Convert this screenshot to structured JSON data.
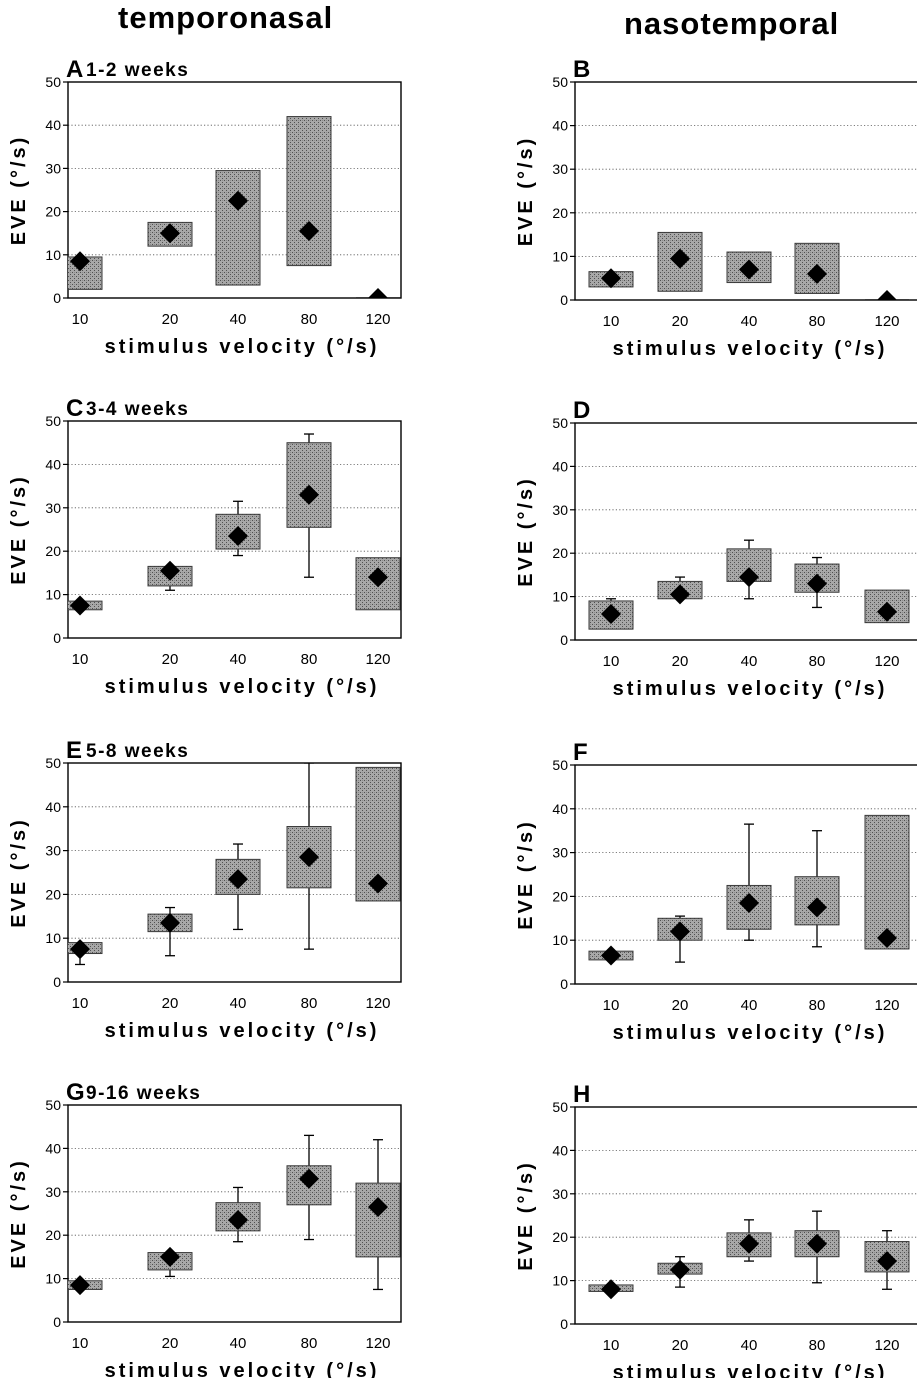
{
  "columns": {
    "left_title": "temporonasal",
    "right_title": "nasotemporal"
  },
  "chart_data": [
    {
      "type": "box",
      "panel": "A",
      "title": "1-2 weeks",
      "xlabel": "stimulus velocity (°/s)",
      "ylabel": "EVE (°/s)",
      "categories": [
        "10",
        "20",
        "40",
        "80",
        "120"
      ],
      "ylim": [
        0,
        50
      ],
      "yticks": [
        0,
        10,
        20,
        30,
        40,
        50
      ],
      "grid": "horizontal dotted",
      "boxes": [
        {
          "low": 2,
          "high": 9.5,
          "median": 8.5,
          "whisker_low": null,
          "whisker_high": null
        },
        {
          "low": 12,
          "high": 17.5,
          "median": 15,
          "whisker_low": null,
          "whisker_high": null
        },
        {
          "low": 3,
          "high": 29.5,
          "median": 22.5,
          "whisker_low": null,
          "whisker_high": null
        },
        {
          "low": 7.5,
          "high": 42,
          "median": 15.5,
          "whisker_low": null,
          "whisker_high": null
        },
        {
          "low": 0,
          "high": 0,
          "median": 0,
          "whisker_low": null,
          "whisker_high": null
        }
      ]
    },
    {
      "type": "box",
      "panel": "B",
      "title": "",
      "xlabel": "stimulus velocity (°/s)",
      "ylabel": "EVE (°/s)",
      "categories": [
        "10",
        "20",
        "40",
        "80",
        "120"
      ],
      "ylim": [
        0,
        50
      ],
      "yticks": [
        0,
        10,
        20,
        30,
        40,
        50
      ],
      "grid": "horizontal dotted",
      "boxes": [
        {
          "low": 3,
          "high": 6.5,
          "median": 5,
          "whisker_low": null,
          "whisker_high": null
        },
        {
          "low": 2,
          "high": 15.5,
          "median": 9.5,
          "whisker_low": null,
          "whisker_high": null
        },
        {
          "low": 4,
          "high": 11,
          "median": 7,
          "whisker_low": null,
          "whisker_high": null
        },
        {
          "low": 1.5,
          "high": 13,
          "median": 6,
          "whisker_low": null,
          "whisker_high": null
        },
        {
          "low": 0,
          "high": 0,
          "median": 0,
          "whisker_low": null,
          "whisker_high": null
        }
      ]
    },
    {
      "type": "box",
      "panel": "C",
      "title": "3-4 weeks",
      "xlabel": "stimulus velocity (°/s)",
      "ylabel": "EVE (°/s)",
      "categories": [
        "10",
        "20",
        "40",
        "80",
        "120"
      ],
      "ylim": [
        0,
        50
      ],
      "yticks": [
        0,
        10,
        20,
        30,
        40,
        50
      ],
      "grid": "horizontal dotted",
      "boxes": [
        {
          "low": 6.5,
          "high": 8.5,
          "median": 7.5,
          "whisker_low": null,
          "whisker_high": null
        },
        {
          "low": 12,
          "high": 16.5,
          "median": 15.5,
          "whisker_low": 11,
          "whisker_high": null
        },
        {
          "low": 20.5,
          "high": 28.5,
          "median": 23.5,
          "whisker_low": 19,
          "whisker_high": 31.5
        },
        {
          "low": 25.5,
          "high": 45,
          "median": 33,
          "whisker_low": 14,
          "whisker_high": 47
        },
        {
          "low": 6.5,
          "high": 18.5,
          "median": 14,
          "whisker_low": null,
          "whisker_high": null
        }
      ]
    },
    {
      "type": "box",
      "panel": "D",
      "title": "",
      "xlabel": "stimulus velocity (°/s)",
      "ylabel": "EVE (°/s)",
      "categories": [
        "10",
        "20",
        "40",
        "80",
        "120"
      ],
      "ylim": [
        0,
        50
      ],
      "yticks": [
        0,
        10,
        20,
        30,
        40,
        50
      ],
      "grid": "horizontal dotted",
      "boxes": [
        {
          "low": 2.5,
          "high": 9,
          "median": 6,
          "whisker_low": null,
          "whisker_high": 9.5
        },
        {
          "low": 9.5,
          "high": 13.5,
          "median": 10.5,
          "whisker_low": null,
          "whisker_high": 14.5
        },
        {
          "low": 13.5,
          "high": 21,
          "median": 14.5,
          "whisker_low": 9.5,
          "whisker_high": 23
        },
        {
          "low": 11,
          "high": 17.5,
          "median": 13,
          "whisker_low": 7.5,
          "whisker_high": 19
        },
        {
          "low": 4,
          "high": 11.5,
          "median": 6.5,
          "whisker_low": null,
          "whisker_high": null
        }
      ]
    },
    {
      "type": "box",
      "panel": "E",
      "title": "5-8 weeks",
      "xlabel": "stimulus velocity (°/s)",
      "ylabel": "EVE (°/s)",
      "categories": [
        "10",
        "20",
        "40",
        "80",
        "120"
      ],
      "ylim": [
        0,
        50
      ],
      "yticks": [
        0,
        10,
        20,
        30,
        40,
        50
      ],
      "grid": "horizontal dotted",
      "boxes": [
        {
          "low": 6.5,
          "high": 9,
          "median": 7.5,
          "whisker_low": 4,
          "whisker_high": null
        },
        {
          "low": 11.5,
          "high": 15.5,
          "median": 13.5,
          "whisker_low": 6,
          "whisker_high": 17
        },
        {
          "low": 20,
          "high": 28,
          "median": 23.5,
          "whisker_low": 12,
          "whisker_high": 31.5
        },
        {
          "low": 21.5,
          "high": 35.5,
          "median": 28.5,
          "whisker_low": 7.5,
          "whisker_high": 50
        },
        {
          "low": 18.5,
          "high": 49,
          "median": 22.5,
          "whisker_low": null,
          "whisker_high": null
        }
      ]
    },
    {
      "type": "box",
      "panel": "F",
      "title": "",
      "xlabel": "stimulus velocity (°/s)",
      "ylabel": "EVE (°/s)",
      "categories": [
        "10",
        "20",
        "40",
        "80",
        "120"
      ],
      "ylim": [
        0,
        50
      ],
      "yticks": [
        0,
        10,
        20,
        30,
        40,
        50
      ],
      "grid": "horizontal dotted",
      "boxes": [
        {
          "low": 5.5,
          "high": 7.5,
          "median": 6.5,
          "whisker_low": null,
          "whisker_high": null
        },
        {
          "low": 10,
          "high": 15,
          "median": 12,
          "whisker_low": 5,
          "whisker_high": 15.5
        },
        {
          "low": 12.5,
          "high": 22.5,
          "median": 18.5,
          "whisker_low": 10,
          "whisker_high": 36.5
        },
        {
          "low": 13.5,
          "high": 24.5,
          "median": 17.5,
          "whisker_low": 8.5,
          "whisker_high": 35
        },
        {
          "low": 8,
          "high": 38.5,
          "median": 10.5,
          "whisker_low": null,
          "whisker_high": null
        }
      ]
    },
    {
      "type": "box",
      "panel": "G",
      "title": "9-16 weeks",
      "xlabel": "stimulus velocity (°/s)",
      "ylabel": "EVE (°/s)",
      "categories": [
        "10",
        "20",
        "40",
        "80",
        "120"
      ],
      "ylim": [
        0,
        50
      ],
      "yticks": [
        0,
        10,
        20,
        30,
        40,
        50
      ],
      "grid": "horizontal dotted",
      "boxes": [
        {
          "low": 7.5,
          "high": 9.5,
          "median": 8.5,
          "whisker_low": null,
          "whisker_high": null
        },
        {
          "low": 12,
          "high": 16,
          "median": 15,
          "whisker_low": 10.5,
          "whisker_high": null
        },
        {
          "low": 21,
          "high": 27.5,
          "median": 23.5,
          "whisker_low": 18.5,
          "whisker_high": 31
        },
        {
          "low": 27,
          "high": 36,
          "median": 33,
          "whisker_low": 19,
          "whisker_high": 43
        },
        {
          "low": 15,
          "high": 32,
          "median": 26.5,
          "whisker_low": 7.5,
          "whisker_high": 42
        }
      ]
    },
    {
      "type": "box",
      "panel": "H",
      "title": "",
      "xlabel": "stimulus velocity (°/s)",
      "ylabel": "EVE (°/s)",
      "categories": [
        "10",
        "20",
        "40",
        "80",
        "120"
      ],
      "ylim": [
        0,
        50
      ],
      "yticks": [
        0,
        10,
        20,
        30,
        40,
        50
      ],
      "grid": "horizontal dotted",
      "boxes": [
        {
          "low": 7.5,
          "high": 9,
          "median": 8,
          "whisker_low": null,
          "whisker_high": null
        },
        {
          "low": 11.5,
          "high": 14,
          "median": 12.5,
          "whisker_low": 8.5,
          "whisker_high": 15.5
        },
        {
          "low": 15.5,
          "high": 21,
          "median": 18.5,
          "whisker_low": 14.5,
          "whisker_high": 24
        },
        {
          "low": 15.5,
          "high": 21.5,
          "median": 18.5,
          "whisker_low": 9.5,
          "whisker_high": 26
        },
        {
          "low": 12,
          "high": 19,
          "median": 14.5,
          "whisker_low": 8,
          "whisker_high": 21.5
        }
      ]
    }
  ],
  "colors": {
    "box_fill": "#9a9a9a",
    "box_stroke": "#3a3a3a",
    "marker": "#000000",
    "grid": "#555555",
    "axis": "#000000"
  }
}
